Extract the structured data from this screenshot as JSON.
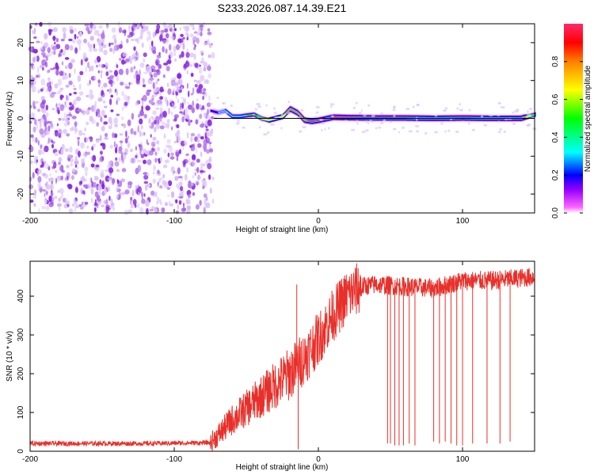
{
  "title": "S233.2026.087.14.39.E21",
  "chart_data": [
    {
      "type": "heatmap",
      "name": "spectrogram",
      "xlabel": "Height of straight line (km)",
      "ylabel": "Frequency (Hz)",
      "xlim": [
        -200,
        150
      ],
      "ylim": [
        -25,
        25
      ],
      "xticks": [
        -200,
        -100,
        0,
        100
      ],
      "yticks": [
        -20,
        -10,
        0,
        10,
        20
      ],
      "colorbar": {
        "label": "Normalized spectral amplitude",
        "range": [
          0,
          1
        ],
        "ticks": [
          0.0,
          0.2,
          0.4,
          0.6,
          0.8
        ],
        "colormap": [
          "#ffffff",
          "#ff00ff",
          "#9900ff",
          "#0000ff",
          "#00ffff",
          "#00ff00",
          "#ffff00",
          "#ff8000",
          "#ff0000"
        ]
      },
      "noise_region": {
        "x_from": -200,
        "x_to": -73,
        "freq_range": [
          -25,
          25
        ],
        "amplitude": 0.1
      },
      "signal_ridge": {
        "x": [
          -75,
          -70,
          -65,
          -60,
          -55,
          -50,
          -45,
          -40,
          -35,
          -30,
          -25,
          -20,
          -15,
          -10,
          -5,
          0,
          10,
          20,
          40,
          60,
          80,
          100,
          120,
          140,
          150
        ],
        "freq": [
          2.0,
          1.5,
          2.0,
          0.5,
          0.5,
          0.8,
          1.0,
          0.0,
          -0.5,
          0.0,
          0.5,
          2.5,
          1.5,
          -0.5,
          -0.8,
          -0.5,
          0.3,
          0.2,
          0.1,
          0.1,
          0.0,
          0.1,
          0.0,
          0.0,
          1.0
        ],
        "amplitude": [
          0.3,
          0.35,
          0.4,
          0.45,
          0.5,
          0.55,
          0.6,
          0.7,
          0.75,
          0.8,
          0.8,
          0.85,
          0.85,
          0.9,
          0.95,
          0.95,
          0.95,
          0.95,
          0.95,
          0.95,
          0.95,
          0.95,
          0.95,
          0.95,
          0.6
        ]
      }
    },
    {
      "type": "line",
      "name": "snr",
      "xlabel": "Height of straight line (km)",
      "ylabel": "SNR (10 * v/v)",
      "xlim": [
        -200,
        150
      ],
      "ylim": [
        0,
        490
      ],
      "xticks": [
        -200,
        -100,
        0,
        100
      ],
      "yticks": [
        0,
        100,
        200,
        300,
        400
      ],
      "series": [
        {
          "name": "SNR",
          "color": "#e8302a",
          "trend_x": [
            -200,
            -120,
            -75,
            -70,
            -60,
            -50,
            -40,
            -30,
            -20,
            -10,
            0,
            10,
            20,
            30,
            40,
            60,
            80,
            100,
            120,
            150
          ],
          "trend_y": [
            20,
            20,
            22,
            40,
            80,
            110,
            140,
            170,
            200,
            240,
            290,
            350,
            400,
            425,
            430,
            425,
            420,
            440,
            440,
            450
          ],
          "dropouts": [
            {
              "x": -14,
              "y": 5
            },
            {
              "x": 48,
              "y": 20
            },
            {
              "x": 50,
              "y": 20
            },
            {
              "x": 53,
              "y": 15
            },
            {
              "x": 56,
              "y": 15
            },
            {
              "x": 59,
              "y": 15
            },
            {
              "x": 63,
              "y": 20
            },
            {
              "x": 67,
              "y": 15
            },
            {
              "x": 80,
              "y": 25
            },
            {
              "x": 84,
              "y": 20
            },
            {
              "x": 88,
              "y": 25
            },
            {
              "x": 92,
              "y": 20
            },
            {
              "x": 96,
              "y": 15
            },
            {
              "x": 100,
              "y": 15
            },
            {
              "x": 107,
              "y": 20
            },
            {
              "x": 117,
              "y": 20
            },
            {
              "x": 126,
              "y": 20
            },
            {
              "x": 133,
              "y": 25
            }
          ],
          "spikes": [
            {
              "x": -15,
              "y": 430
            }
          ]
        }
      ]
    }
  ]
}
